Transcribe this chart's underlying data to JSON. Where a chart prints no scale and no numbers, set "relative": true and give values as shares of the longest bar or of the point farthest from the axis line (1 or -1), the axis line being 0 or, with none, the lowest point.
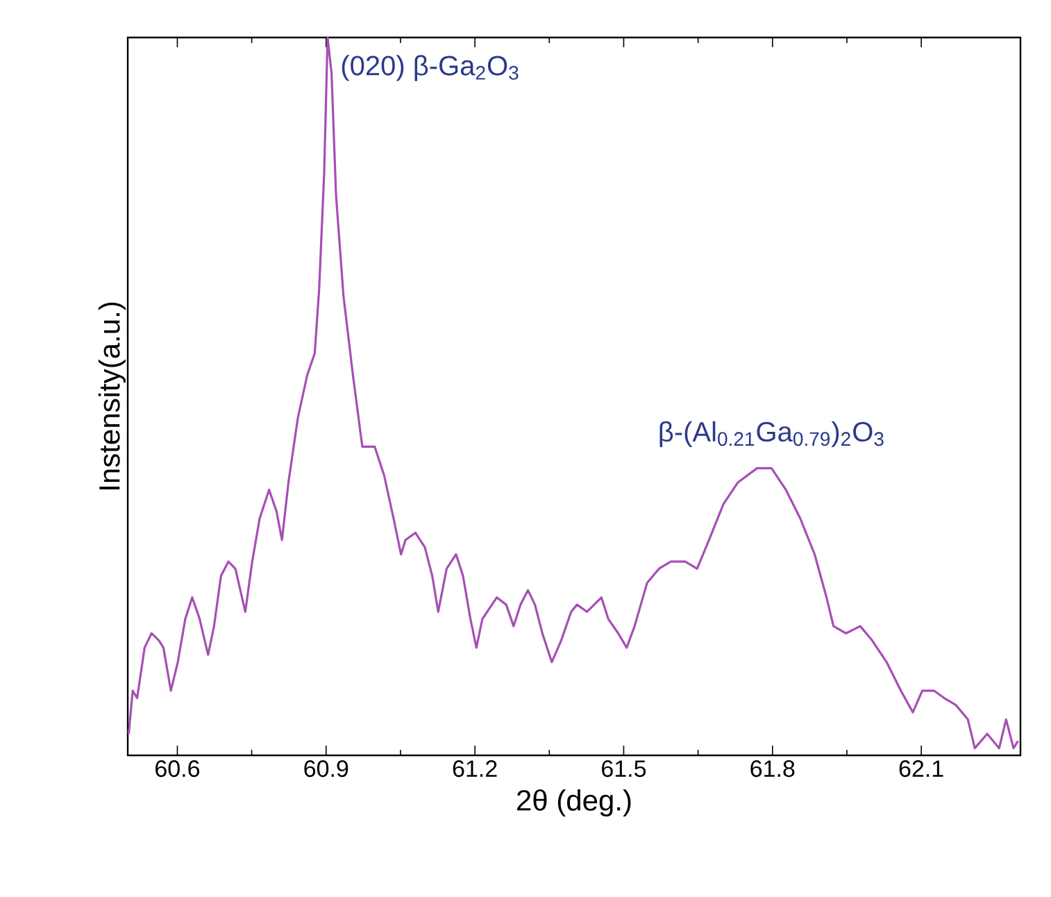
{
  "chart_data": {
    "type": "line",
    "relative": true,
    "xlabel": "2θ (deg.)",
    "ylabel": "Instensity(a.u.)",
    "xlim": [
      60.5,
      62.3
    ],
    "xticks": [
      60.6,
      60.9,
      61.2,
      61.5,
      61.8,
      62.1
    ],
    "marker": "none",
    "line_style": "solid",
    "annotations": [
      {
        "text": "(020) β-Ga$_{2}$O$_{3}$",
        "x": 60.903,
        "y": 1.0
      },
      {
        "text": "β-(Al$_{0.21}$Ga$_{0.79}$)$_{2}$O$_{3}$",
        "x": 61.798,
        "y": 0.4
      }
    ],
    "series": [
      {
        "color": "#a64fb4",
        "x": [
          60.502,
          60.51,
          60.519,
          60.534,
          60.548,
          60.563,
          60.572,
          60.587,
          60.601,
          60.616,
          60.63,
          60.645,
          60.662,
          60.674,
          60.688,
          60.703,
          60.717,
          60.737,
          60.751,
          60.766,
          60.785,
          60.8,
          60.811,
          60.824,
          60.843,
          60.862,
          60.877,
          60.886,
          60.896,
          60.903,
          60.911,
          60.92,
          60.935,
          60.954,
          60.973,
          60.998,
          61.017,
          61.036,
          61.051,
          61.06,
          61.08,
          61.099,
          61.114,
          61.126,
          61.143,
          61.162,
          61.176,
          61.191,
          61.203,
          61.215,
          61.244,
          61.263,
          61.278,
          61.292,
          61.307,
          61.321,
          61.336,
          61.355,
          61.374,
          61.394,
          61.406,
          61.426,
          61.455,
          61.469,
          61.489,
          61.506,
          61.522,
          61.547,
          61.571,
          61.595,
          61.624,
          61.648,
          61.672,
          61.701,
          61.73,
          61.769,
          61.798,
          61.827,
          61.856,
          61.885,
          61.909,
          61.923,
          61.948,
          61.977,
          62.001,
          62.03,
          62.059,
          62.083,
          62.102,
          62.126,
          62.146,
          62.17,
          62.194,
          62.208,
          62.233,
          62.257,
          62.271,
          62.286,
          62.295
        ],
        "values": [
          0.03,
          0.09,
          0.08,
          0.15,
          0.17,
          0.16,
          0.15,
          0.09,
          0.13,
          0.19,
          0.22,
          0.19,
          0.14,
          0.18,
          0.25,
          0.27,
          0.26,
          0.2,
          0.27,
          0.33,
          0.37,
          0.34,
          0.3,
          0.38,
          0.47,
          0.53,
          0.56,
          0.65,
          0.81,
          1.0,
          0.95,
          0.78,
          0.64,
          0.53,
          0.43,
          0.43,
          0.39,
          0.33,
          0.28,
          0.3,
          0.31,
          0.29,
          0.25,
          0.2,
          0.26,
          0.28,
          0.25,
          0.19,
          0.15,
          0.19,
          0.22,
          0.21,
          0.18,
          0.21,
          0.23,
          0.21,
          0.17,
          0.13,
          0.16,
          0.2,
          0.21,
          0.2,
          0.22,
          0.19,
          0.17,
          0.15,
          0.18,
          0.24,
          0.26,
          0.27,
          0.27,
          0.26,
          0.3,
          0.35,
          0.38,
          0.4,
          0.4,
          0.37,
          0.33,
          0.28,
          0.22,
          0.18,
          0.17,
          0.18,
          0.16,
          0.13,
          0.09,
          0.06,
          0.09,
          0.09,
          0.08,
          0.07,
          0.05,
          0.01,
          0.03,
          0.01,
          0.05,
          0.01,
          0.02
        ]
      }
    ]
  }
}
